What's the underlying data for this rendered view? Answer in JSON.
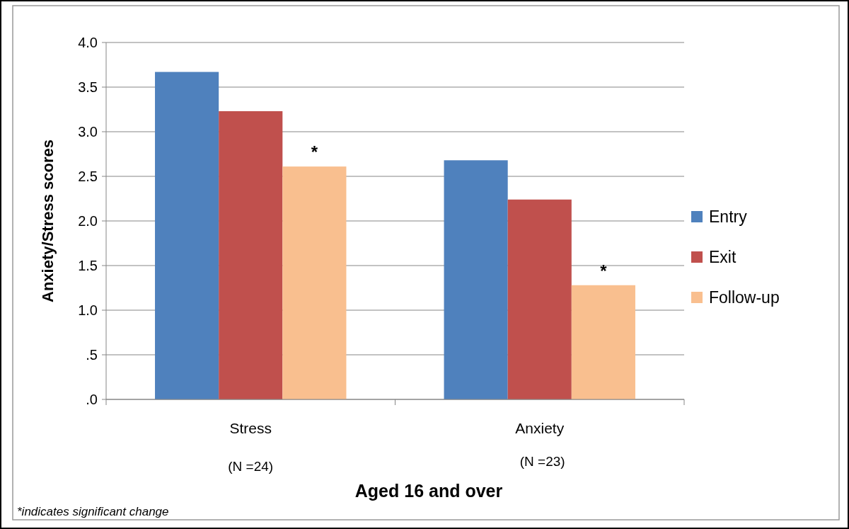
{
  "chart_data": {
    "type": "bar",
    "xlabel": "Aged 16 and over",
    "ylabel": "Anxiety/Stress scores",
    "categories": [
      "Stress",
      "Anxiety"
    ],
    "series": [
      {
        "name": "Entry",
        "color": "#4f81bd",
        "values": [
          3.67,
          2.68
        ]
      },
      {
        "name": "Exit",
        "color": "#c0504d",
        "values": [
          3.23,
          2.24
        ]
      },
      {
        "name": "Follow-up",
        "color": "#f9bf8f",
        "values": [
          2.61,
          1.28
        ]
      }
    ],
    "ylim": [
      0,
      4
    ],
    "yticks": [
      {
        "value": 0,
        "label": ".0"
      },
      {
        "value": 0.5,
        "label": ".5"
      },
      {
        "value": 1,
        "label": "1.0"
      },
      1.5,
      {
        "value": 2,
        "label": "2.0"
      },
      2.5,
      {
        "value": 3,
        "label": "3.0"
      },
      3.5,
      {
        "value": 4,
        "label": "4.0"
      }
    ],
    "grid": "y",
    "legend": "right",
    "annotations": [
      "*",
      "*",
      "(N =24)",
      "(N =23)",
      "*indicates significant change"
    ]
  }
}
